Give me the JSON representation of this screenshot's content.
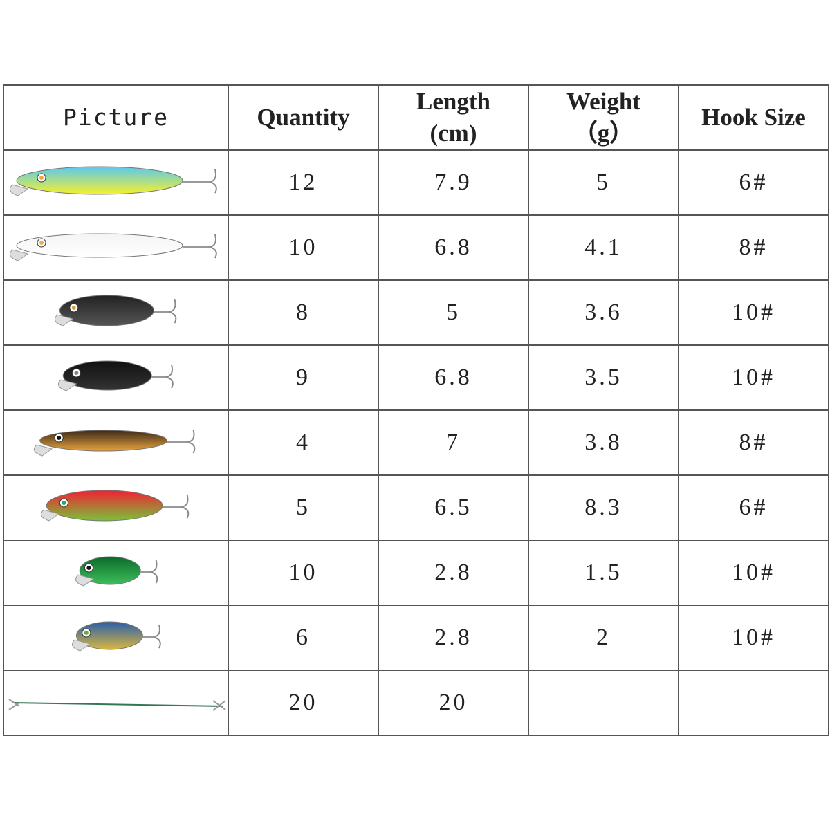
{
  "table": {
    "header": [
      "Picture",
      "Quantity",
      "Length\n(cm)",
      "Weight\n（g）",
      "Hook Size"
    ],
    "rows": [
      [
        "12",
        "7.9",
        "5",
        "6#"
      ],
      [
        "10",
        "6.8",
        "4.1",
        "8#"
      ],
      [
        "8",
        "5",
        "3.6",
        "10#"
      ],
      [
        "9",
        "6.8",
        "3.5",
        "10#"
      ],
      [
        "4",
        "7",
        "3.8",
        "8#"
      ],
      [
        "5",
        "6.5",
        "8.3",
        "6#"
      ],
      [
        "10",
        "2.8",
        "1.5",
        "10#"
      ],
      [
        "6",
        "2.8",
        "2",
        "10#"
      ],
      [
        "20",
        "20"
      ]
    ]
  }
}
